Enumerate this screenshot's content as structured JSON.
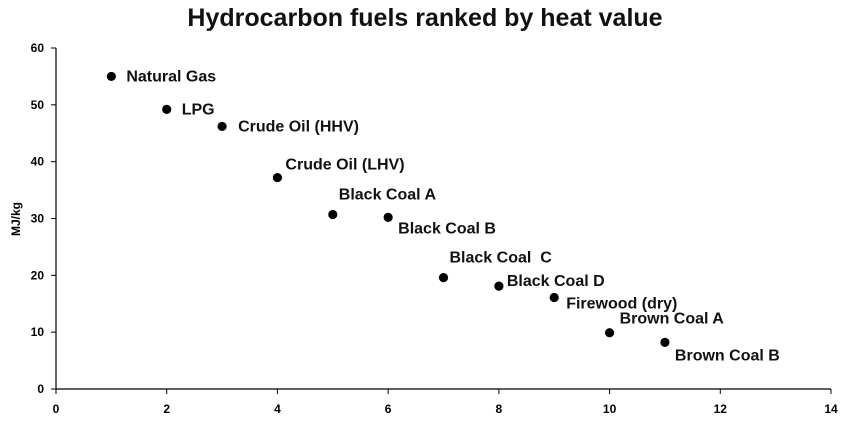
{
  "chart_data": {
    "type": "scatter",
    "title": "Hydrocarbon fuels ranked by heat value",
    "xlabel": "",
    "ylabel": "MJ/kg",
    "xlim": [
      0,
      14
    ],
    "ylim": [
      0,
      60
    ],
    "xticks": [
      "0",
      "2",
      "4",
      "6",
      "8",
      "10",
      "12",
      "14"
    ],
    "yticks": [
      "0",
      "10",
      "20",
      "30",
      "40",
      "50",
      "60"
    ],
    "grid": false,
    "legend": "none",
    "marker_color": "#000000",
    "points": [
      {
        "label": "Natural Gas",
        "x": 1,
        "y": 55.0
      },
      {
        "label": "LPG",
        "x": 2,
        "y": 49.2
      },
      {
        "label": "Crude Oil (HHV)",
        "x": 3,
        "y": 46.2
      },
      {
        "label": "Crude Oil (LHV)",
        "x": 4,
        "y": 37.2
      },
      {
        "label": "Black Coal A",
        "x": 5,
        "y": 30.7
      },
      {
        "label": "Black Coal B",
        "x": 6,
        "y": 30.2
      },
      {
        "label": "Black Coal  C",
        "x": 7,
        "y": 19.6
      },
      {
        "label": "Black Coal D",
        "x": 8,
        "y": 18.1
      },
      {
        "label": "Firewood (dry)",
        "x": 9,
        "y": 16.1
      },
      {
        "label": "Brown Coal A",
        "x": 10,
        "y": 9.9
      },
      {
        "label": "Brown Coal B",
        "x": 11,
        "y": 8.2
      }
    ]
  }
}
